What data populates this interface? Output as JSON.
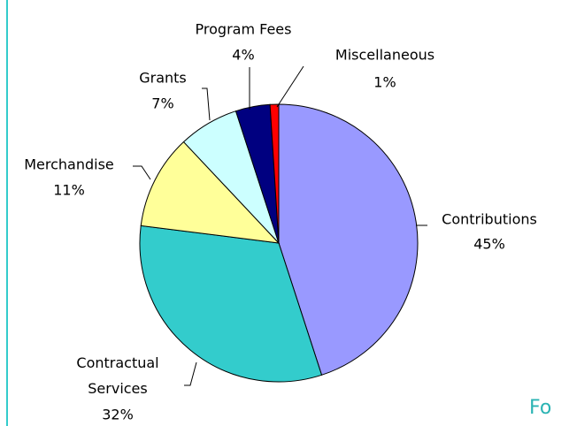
{
  "chart_data": {
    "type": "pie",
    "categories": [
      "Contributions",
      "Contractual Services",
      "Merchandise",
      "Grants",
      "Program Fees",
      "Miscellaneous"
    ],
    "values": [
      45,
      32,
      11,
      7,
      4,
      1
    ],
    "value_labels": [
      "45%",
      "32%",
      "11%",
      "7%",
      "4%",
      "1%"
    ],
    "colors": [
      "#9999ff",
      "#33cccc",
      "#ffff99",
      "#ccffff",
      "#000080",
      "#ff0000"
    ]
  },
  "corner_text": "Fo"
}
